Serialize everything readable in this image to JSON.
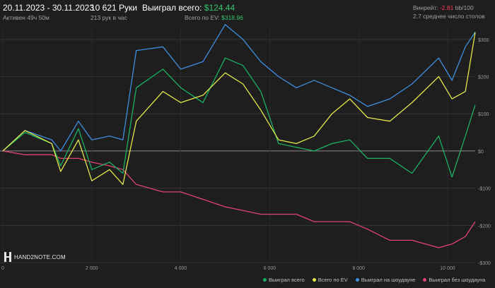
{
  "header": {
    "date_range": "20.11.2023 - 30.11.2023",
    "active_time": "Активен 49ч 50м",
    "hands": "10 621 Руки",
    "hands_per_hour": "213 рук в час",
    "won_total_label": "Выиграл всего:",
    "won_total_value": "$124.44",
    "ev_total_label": "Всего по EV:",
    "ev_total_value": "$318.96",
    "winrate_label": "Винрейт:",
    "winrate_value": "-2.81",
    "winrate_unit": "bb/100",
    "avg_tables": "2.7 среднее число столов"
  },
  "logo_text": "HAND2NOTE.COM",
  "colors": {
    "background": "#1e1e1e",
    "won_total": "#1bb163",
    "ev_total": "#e4e84a",
    "showdown": "#3f8fe0",
    "non_showdown": "#e0436f",
    "positive": "#35c46b",
    "negative": "#ff3d62"
  },
  "chart_data": {
    "type": "line",
    "x_ticks": [
      "0",
      "2 000",
      "4 000",
      "6 000",
      "8 000",
      "10 000"
    ],
    "y_ticks": [
      "$300",
      "$200",
      "$100",
      "$0",
      "-$100",
      "-$200",
      "-$300"
    ],
    "xlim": [
      0,
      10621
    ],
    "ylim": [
      -300,
      330
    ],
    "grid": true,
    "legend_position": "bottom-right",
    "x": [
      0,
      500,
      1100,
      1300,
      1700,
      2000,
      2400,
      2700,
      3000,
      3600,
      4000,
      4500,
      5000,
      5400,
      5800,
      6200,
      6600,
      7000,
      7400,
      7800,
      8200,
      8700,
      9200,
      9800,
      10100,
      10400,
      10621
    ],
    "series": [
      {
        "name": "Выиграл всего",
        "color": "#1bb163",
        "values": [
          0,
          50,
          20,
          -40,
          60,
          -50,
          -30,
          -60,
          170,
          220,
          170,
          130,
          250,
          230,
          160,
          20,
          10,
          0,
          20,
          30,
          -20,
          -20,
          -60,
          40,
          -70,
          40,
          124
        ]
      },
      {
        "name": "Всего по EV",
        "color": "#e4e84a",
        "values": [
          0,
          55,
          20,
          -55,
          30,
          -80,
          -50,
          -90,
          80,
          160,
          130,
          150,
          210,
          180,
          110,
          30,
          20,
          40,
          100,
          140,
          90,
          80,
          130,
          200,
          140,
          160,
          319
        ]
      },
      {
        "name": "Выиграл на шоудауне",
        "color": "#3f8fe0",
        "values": [
          0,
          55,
          30,
          0,
          80,
          30,
          40,
          30,
          270,
          280,
          220,
          240,
          340,
          300,
          240,
          200,
          170,
          190,
          170,
          150,
          120,
          140,
          180,
          250,
          190,
          280,
          320
        ]
      },
      {
        "name": "Выиграл без шоудауна",
        "color": "#e0436f",
        "values": [
          0,
          -10,
          -10,
          -20,
          -20,
          -30,
          -40,
          -50,
          -90,
          -110,
          -110,
          -130,
          -150,
          -160,
          -170,
          -170,
          -170,
          -190,
          -190,
          -190,
          -210,
          -240,
          -240,
          -260,
          -250,
          -230,
          -190
        ]
      }
    ]
  }
}
